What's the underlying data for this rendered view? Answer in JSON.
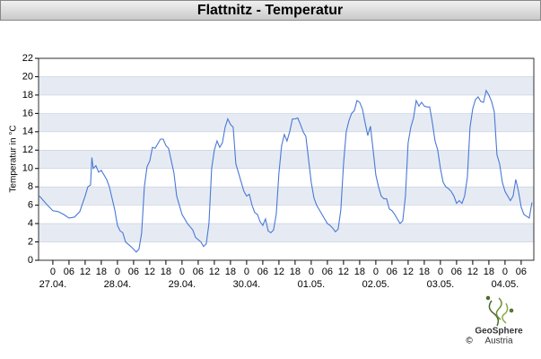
{
  "chart_data": {
    "type": "line",
    "title": "Flattnitz - Temperatur",
    "y_label": "Temperatur in °C",
    "x": [
      -5,
      -2,
      0,
      2,
      4,
      6,
      8,
      10,
      12,
      13,
      14,
      14.5,
      15,
      16,
      17,
      18,
      20,
      21,
      23,
      24,
      25,
      26,
      27,
      29,
      31,
      32,
      33,
      34,
      35,
      36,
      37,
      38,
      40,
      41,
      42,
      43,
      45,
      46,
      48,
      50,
      52,
      53,
      55,
      56,
      57,
      58,
      59,
      60,
      61,
      62,
      63,
      64,
      65,
      66,
      67,
      68,
      69,
      70,
      71,
      72,
      73,
      74,
      75,
      76,
      77,
      78,
      79,
      80,
      81,
      82,
      83,
      84,
      85,
      86,
      87,
      88,
      89,
      90,
      91,
      92,
      93,
      94,
      95,
      96,
      97,
      98,
      99,
      100,
      101,
      102,
      103,
      104,
      105,
      106,
      107,
      108,
      109,
      110,
      111,
      112,
      113,
      114,
      115,
      116,
      117,
      118,
      119,
      120,
      121,
      122,
      123,
      124,
      125,
      126,
      127,
      128,
      129,
      130,
      131,
      132,
      133,
      134,
      135,
      136,
      137,
      138,
      139,
      140,
      141,
      142,
      143,
      144,
      145,
      146,
      147,
      148,
      149,
      150,
      151,
      152,
      153,
      154,
      155,
      156,
      157,
      158,
      159,
      160,
      161,
      162,
      163,
      164,
      165,
      166,
      167,
      168,
      169,
      170,
      171,
      172,
      173,
      174,
      175,
      176,
      177,
      178
    ],
    "series": [
      {
        "name": "Temperatur",
        "color": "#4a78d6",
        "values": [
          7.0,
          6.0,
          5.4,
          5.3,
          5.0,
          4.6,
          4.7,
          5.3,
          7.0,
          8.0,
          8.2,
          11.2,
          10.0,
          10.3,
          9.6,
          9.8,
          8.8,
          8.0,
          5.5,
          3.8,
          3.2,
          3.0,
          2.0,
          1.5,
          0.9,
          1.2,
          3.0,
          8.0,
          10.2,
          10.8,
          12.3,
          12.2,
          13.2,
          13.2,
          12.5,
          12.2,
          9.5,
          7.0,
          5.0,
          4.0,
          3.3,
          2.5,
          2.0,
          1.5,
          1.8,
          4.0,
          10.0,
          12.0,
          13.0,
          12.3,
          12.8,
          14.5,
          15.4,
          14.8,
          14.5,
          10.5,
          9.5,
          8.5,
          7.5,
          7.0,
          7.2,
          6.0,
          5.2,
          5.0,
          4.2,
          3.8,
          4.5,
          3.2,
          3.0,
          3.3,
          5.0,
          9.5,
          12.5,
          13.7,
          13.0,
          14.0,
          15.4,
          15.4,
          15.5,
          14.8,
          14.0,
          13.5,
          11.0,
          8.5,
          6.8,
          6.0,
          5.5,
          5.0,
          4.5,
          4.0,
          3.8,
          3.5,
          3.1,
          3.4,
          5.5,
          10.5,
          14.0,
          15.2,
          16.0,
          16.3,
          17.4,
          17.2,
          16.5,
          15.0,
          13.6,
          14.6,
          12.0,
          9.3,
          8.0,
          7.0,
          6.7,
          6.7,
          5.6,
          5.4,
          5.0,
          4.5,
          4.0,
          4.3,
          7.0,
          12.8,
          14.5,
          15.5,
          17.4,
          16.8,
          17.2,
          16.8,
          16.7,
          16.7,
          15.0,
          13.0,
          12.0,
          10.0,
          8.5,
          8.0,
          7.8,
          7.5,
          7.0,
          6.2,
          6.5,
          6.2,
          7.0,
          9.0,
          14.5,
          16.5,
          17.5,
          17.8,
          17.3,
          17.2,
          18.5,
          18.0,
          17.3,
          16.2,
          11.5,
          10.5,
          8.5,
          7.5,
          7.0,
          6.5,
          7.0,
          8.8,
          7.5,
          5.8,
          5.0,
          4.8,
          4.6,
          6.3
        ]
      }
    ],
    "xlim": [
      -5.3,
      178.7
    ],
    "xticks": [
      0,
      {
        "value": 6,
        "label": "06"
      },
      12,
      18,
      {
        "value": 24,
        "label": "0"
      },
      {
        "value": 30,
        "label": "06"
      },
      {
        "value": 36,
        "label": "12"
      },
      {
        "value": 42,
        "label": "18"
      },
      {
        "value": 48,
        "label": "0"
      },
      {
        "value": 54,
        "label": "06"
      },
      {
        "value": 60,
        "label": "12"
      },
      {
        "value": 66,
        "label": "18"
      },
      {
        "value": 72,
        "label": "0"
      },
      {
        "value": 78,
        "label": "06"
      },
      {
        "value": 84,
        "label": "12"
      },
      {
        "value": 90,
        "label": "18"
      },
      {
        "value": 96,
        "label": "0"
      },
      {
        "value": 102,
        "label": "06"
      },
      {
        "value": 108,
        "label": "12"
      },
      {
        "value": 114,
        "label": "18"
      },
      {
        "value": 120,
        "label": "0"
      },
      {
        "value": 126,
        "label": "06"
      },
      {
        "value": 132,
        "label": "12"
      },
      {
        "value": 138,
        "label": "18"
      },
      {
        "value": 144,
        "label": "0"
      },
      {
        "value": 150,
        "label": "06"
      },
      {
        "value": 156,
        "label": "12"
      },
      {
        "value": 162,
        "label": "18"
      },
      {
        "value": 168,
        "label": "0"
      },
      {
        "value": 174,
        "label": "06"
      }
    ],
    "date_labels": [
      {
        "value": 0,
        "label": "27.04."
      },
      {
        "value": 24,
        "label": "28.04."
      },
      {
        "value": 48,
        "label": "29.04."
      },
      {
        "value": 72,
        "label": "30.04."
      },
      {
        "value": 96,
        "label": "01.05."
      },
      {
        "value": 120,
        "label": "02.05."
      },
      {
        "value": 144,
        "label": "03.05."
      },
      {
        "value": 168,
        "label": "04.05."
      }
    ],
    "ylim": [
      0,
      22
    ],
    "yticks": [
      0,
      2,
      4,
      6,
      8,
      10,
      12,
      14,
      16,
      18,
      20,
      22
    ],
    "grid": "bands",
    "band_color": "#e6ebf3"
  },
  "footer": {
    "name": "GeoSphere",
    "sub": "Austria",
    "copyright": "©"
  }
}
